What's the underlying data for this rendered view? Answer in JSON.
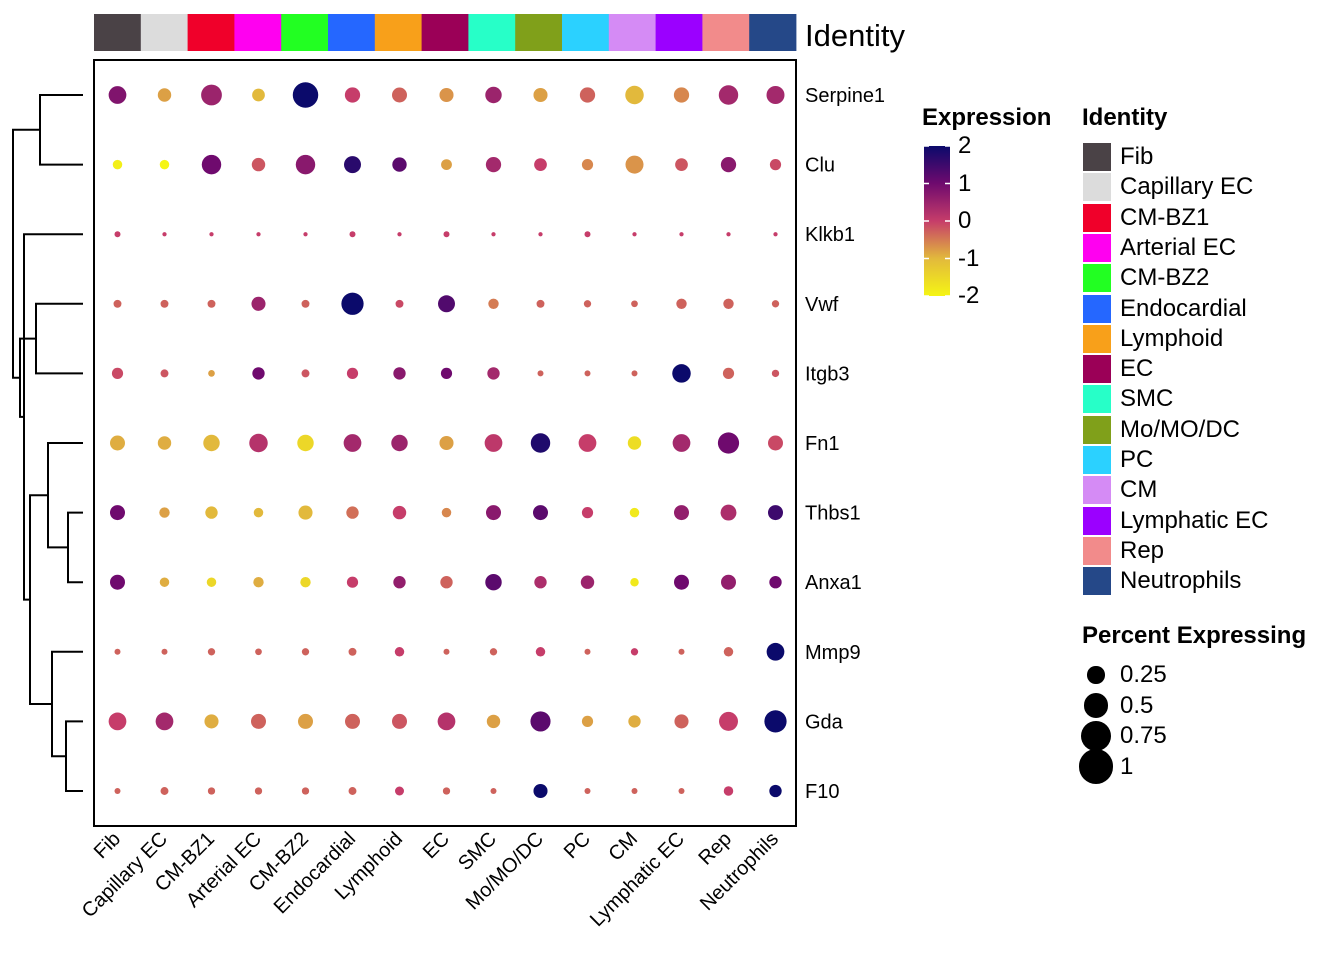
{
  "chart_data": {
    "type": "dotplot",
    "top_annotation_label": "Identity",
    "categories": [
      "Fib",
      "Capillary EC",
      "CM-BZ1",
      "Arterial EC",
      "CM-BZ2",
      "Endocardial",
      "Lymphoid",
      "EC",
      "SMC",
      "Mo/MO/DC",
      "PC",
      "CM",
      "Lymphatic EC",
      "Rep",
      "Neutrophils"
    ],
    "category_colors": [
      "#4a4246",
      "#dcdcdc",
      "#f0002a",
      "#ff00f0",
      "#22ff22",
      "#2567ff",
      "#f8a01a",
      "#9b0057",
      "#27ffc8",
      "#80a01a",
      "#2bd1ff",
      "#d58bf5",
      "#9b00ff",
      "#f28b8b",
      "#254888"
    ],
    "genes": [
      "Serpine1",
      "Clu",
      "Klkb1",
      "Vwf",
      "Itgb3",
      "Fn1",
      "Thbs1",
      "Anxa1",
      "Mmp9",
      "Gda",
      "F10"
    ],
    "color_legend": {
      "title": "Expression",
      "ticks": [
        "2",
        "1",
        "0",
        "-1",
        "-2"
      ],
      "range": [
        -2,
        2
      ]
    },
    "size_legend": {
      "title": "Percent Expressing",
      "values": [
        0.25,
        0.5,
        0.75,
        1
      ],
      "labels": [
        "0.25",
        "0.5",
        "0.75",
        "1"
      ]
    },
    "identity_legend": {
      "title": "Identity"
    },
    "series": [
      {
        "gene": "Serpine1",
        "percent": [
          0.35,
          0.2,
          0.48,
          0.18,
          0.72,
          0.26,
          0.25,
          0.22,
          0.3,
          0.22,
          0.26,
          0.38,
          0.26,
          0.42,
          0.36
        ],
        "expression": [
          0.8,
          -0.8,
          0.5,
          -1.0,
          2.0,
          0.0,
          -0.3,
          -0.7,
          0.5,
          -0.8,
          -0.3,
          -1.0,
          -0.6,
          0.4,
          0.4
        ]
      },
      {
        "gene": "Clu",
        "percent": [
          0.1,
          0.1,
          0.42,
          0.2,
          0.42,
          0.32,
          0.23,
          0.13,
          0.26,
          0.18,
          0.14,
          0.36,
          0.18,
          0.26,
          0.14
        ],
        "expression": [
          -1.9,
          -2.0,
          1.0,
          -0.2,
          0.7,
          1.7,
          1.2,
          -0.8,
          0.4,
          0.0,
          -0.6,
          -0.7,
          -0.2,
          0.7,
          -0.1
        ]
      },
      {
        "gene": "Klkb1",
        "percent": [
          0.04,
          0.02,
          0.02,
          0.02,
          0.02,
          0.04,
          0.02,
          0.04,
          0.02,
          0.02,
          0.04,
          0.02,
          0.02,
          0.02,
          0.02
        ],
        "expression": [
          0,
          0,
          0,
          0,
          0,
          0,
          0,
          0,
          0,
          0,
          0,
          0,
          0,
          0,
          0
        ]
      },
      {
        "gene": "Vwf",
        "percent": [
          0.07,
          0.07,
          0.07,
          0.22,
          0.07,
          0.55,
          0.07,
          0.32,
          0.12,
          0.07,
          0.06,
          0.05,
          0.12,
          0.12,
          0.06
        ],
        "expression": [
          -0.3,
          -0.3,
          -0.3,
          0.5,
          -0.3,
          2.0,
          -0.1,
          1.3,
          -0.5,
          -0.3,
          -0.3,
          -0.3,
          -0.3,
          -0.3,
          -0.3
        ]
      },
      {
        "gene": "Itgb3",
        "percent": [
          0.14,
          0.07,
          0.05,
          0.17,
          0.07,
          0.14,
          0.17,
          0.14,
          0.17,
          0.04,
          0.04,
          0.04,
          0.38,
          0.14,
          0.06
        ],
        "expression": [
          -0.1,
          -0.2,
          -0.8,
          1.0,
          -0.2,
          0.0,
          0.7,
          1.0,
          0.4,
          -0.3,
          -0.3,
          -0.3,
          2.0,
          -0.3,
          -0.2
        ]
      },
      {
        "gene": "Fn1",
        "percent": [
          0.25,
          0.2,
          0.3,
          0.38,
          0.3,
          0.35,
          0.3,
          0.22,
          0.35,
          0.42,
          0.35,
          0.2,
          0.35,
          0.5,
          0.25
        ],
        "expression": [
          -0.9,
          -0.9,
          -1.0,
          0.2,
          -1.5,
          0.4,
          0.5,
          -0.8,
          0.1,
          1.8,
          0.0,
          -1.6,
          0.4,
          1.0,
          -0.1
        ]
      },
      {
        "gene": "Thbs1",
        "percent": [
          0.25,
          0.12,
          0.17,
          0.1,
          0.22,
          0.17,
          0.2,
          0.1,
          0.25,
          0.25,
          0.14,
          0.1,
          0.25,
          0.28,
          0.25
        ],
        "expression": [
          1.0,
          -0.8,
          -1.0,
          -1.0,
          -1.0,
          -0.4,
          0.0,
          -0.6,
          0.7,
          1.2,
          0.0,
          -1.8,
          0.6,
          0.3,
          1.5
        ]
      },
      {
        "gene": "Anxa1",
        "percent": [
          0.25,
          0.1,
          0.1,
          0.12,
          0.12,
          0.14,
          0.17,
          0.17,
          0.3,
          0.17,
          0.2,
          0.08,
          0.25,
          0.25,
          0.17
        ],
        "expression": [
          1.0,
          -0.9,
          -1.5,
          -0.9,
          -1.5,
          0.0,
          0.6,
          -0.3,
          1.2,
          0.3,
          0.5,
          -1.8,
          1.0,
          0.6,
          1.0
        ]
      },
      {
        "gene": "Mmp9",
        "percent": [
          0.04,
          0.04,
          0.06,
          0.05,
          0.06,
          0.07,
          0.1,
          0.04,
          0.06,
          0.1,
          0.04,
          0.06,
          0.04,
          0.1,
          0.35
        ],
        "expression": [
          -0.3,
          -0.3,
          -0.3,
          -0.3,
          -0.3,
          -0.3,
          0.0,
          -0.3,
          -0.3,
          0.0,
          -0.3,
          0.0,
          -0.3,
          -0.3,
          2.0
        ]
      },
      {
        "gene": "Gda",
        "percent": [
          0.35,
          0.35,
          0.22,
          0.25,
          0.25,
          0.25,
          0.25,
          0.35,
          0.2,
          0.45,
          0.14,
          0.17,
          0.22,
          0.4,
          0.55
        ],
        "expression": [
          0.0,
          0.4,
          -0.9,
          -0.3,
          -0.8,
          -0.3,
          -0.2,
          0.2,
          -0.8,
          1.2,
          -0.8,
          -0.9,
          -0.3,
          0.0,
          2.0
        ]
      },
      {
        "gene": "F10",
        "percent": [
          0.04,
          0.07,
          0.06,
          0.06,
          0.06,
          0.07,
          0.09,
          0.06,
          0.04,
          0.22,
          0.04,
          0.04,
          0.04,
          0.1,
          0.17
        ],
        "expression": [
          -0.3,
          -0.3,
          -0.3,
          -0.3,
          -0.3,
          -0.3,
          0.0,
          -0.3,
          -0.3,
          2.0,
          -0.3,
          -0.3,
          -0.3,
          0.0,
          2.0
        ]
      }
    ]
  }
}
